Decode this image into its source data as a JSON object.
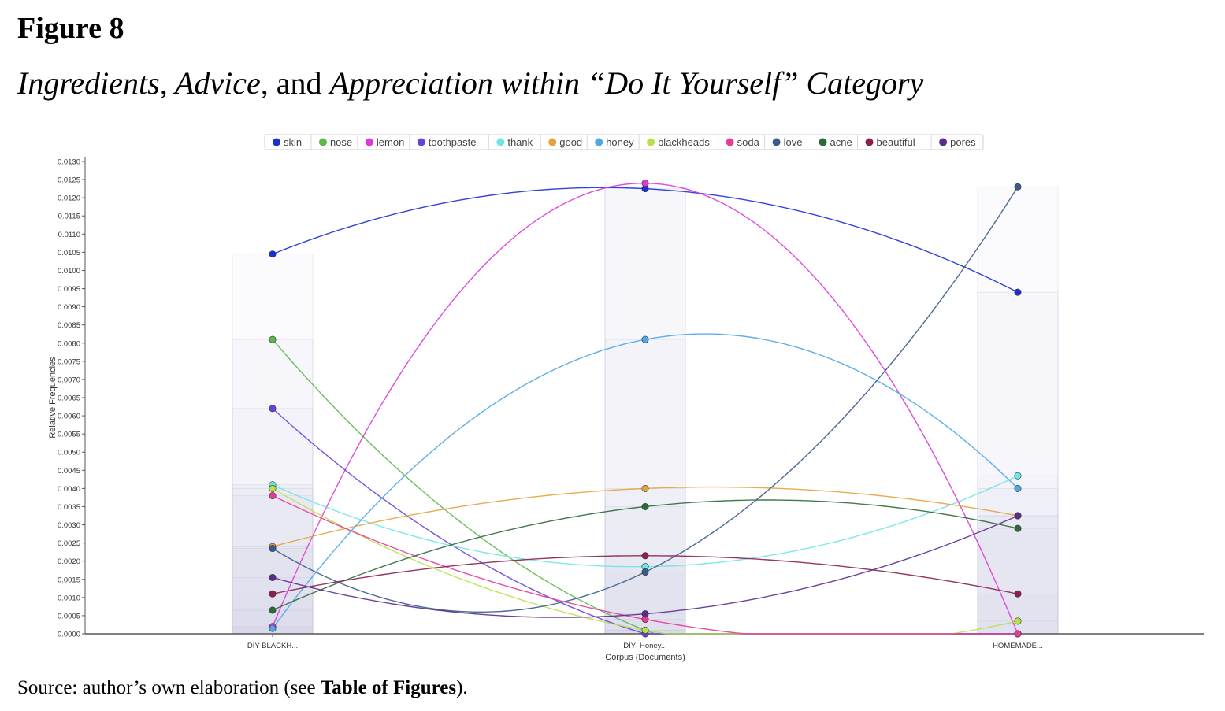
{
  "figure": {
    "label": "Figure 8",
    "title_parts": [
      {
        "text": "Ingredients, Advice,",
        "italic": true
      },
      {
        "text": " and ",
        "italic": false
      },
      {
        "text": "Appreciation within “Do It Yourself” Category",
        "italic": true
      }
    ],
    "source_prefix": "Source: author’s own elaboration (see ",
    "source_bold": "Table of Figures",
    "source_suffix": ")."
  },
  "chart_data": {
    "type": "line",
    "xlabel": "Corpus (Documents)",
    "ylabel": "Relative Frequencies",
    "categories": [
      "DIY BLACKH...",
      "DIY- Honey...",
      "HOMEMADE..."
    ],
    "ylim": [
      0,
      0.013
    ],
    "y_ticks": [
      "0.0000",
      "0.0005",
      "0.0010",
      "0.0015",
      "0.0020",
      "0.0025",
      "0.0030",
      "0.0035",
      "0.0040",
      "0.0045",
      "0.0050",
      "0.0055",
      "0.0060",
      "0.0065",
      "0.0070",
      "0.0075",
      "0.0080",
      "0.0085",
      "0.0090",
      "0.0095",
      "0.0100",
      "0.0105",
      "0.0110",
      "0.0115",
      "0.0120",
      "0.0125",
      "0.0130"
    ],
    "legend_position": "top",
    "grid": false,
    "series": [
      {
        "name": "skin",
        "color": "#1a2fd6",
        "values": [
          0.01045,
          0.01225,
          0.0094
        ]
      },
      {
        "name": "nose",
        "color": "#5cb84a",
        "values": [
          0.0081,
          0.0001,
          0.0
        ]
      },
      {
        "name": "lemon",
        "color": "#d93ad9",
        "values": [
          0.0002,
          0.0124,
          0.0
        ]
      },
      {
        "name": "toothpaste",
        "color": "#6a3fe0",
        "values": [
          0.0062,
          0.0,
          0.0
        ]
      },
      {
        "name": "thank",
        "color": "#6fe6e6",
        "values": [
          0.0041,
          0.00185,
          0.00435
        ]
      },
      {
        "name": "good",
        "color": "#e6a23c",
        "values": [
          0.0024,
          0.004,
          0.00325
        ]
      },
      {
        "name": "honey",
        "color": "#4da6e6",
        "values": [
          0.00015,
          0.0081,
          0.004
        ]
      },
      {
        "name": "blackheads",
        "color": "#b8e04a",
        "values": [
          0.004,
          0.0001,
          0.00035
        ]
      },
      {
        "name": "soda",
        "color": "#e63c96",
        "values": [
          0.0038,
          0.0004,
          0.0
        ]
      },
      {
        "name": "love",
        "color": "#3a5a8c",
        "values": [
          0.00235,
          0.0017,
          0.0123
        ]
      },
      {
        "name": "acne",
        "color": "#2d6a3a",
        "values": [
          0.00065,
          0.0035,
          0.0029
        ]
      },
      {
        "name": "beautiful",
        "color": "#8c1f52",
        "values": [
          0.0011,
          0.00215,
          0.0011
        ]
      },
      {
        "name": "pores",
        "color": "#5a2d8c",
        "values": [
          0.00155,
          0.00055,
          0.00325
        ]
      }
    ]
  }
}
